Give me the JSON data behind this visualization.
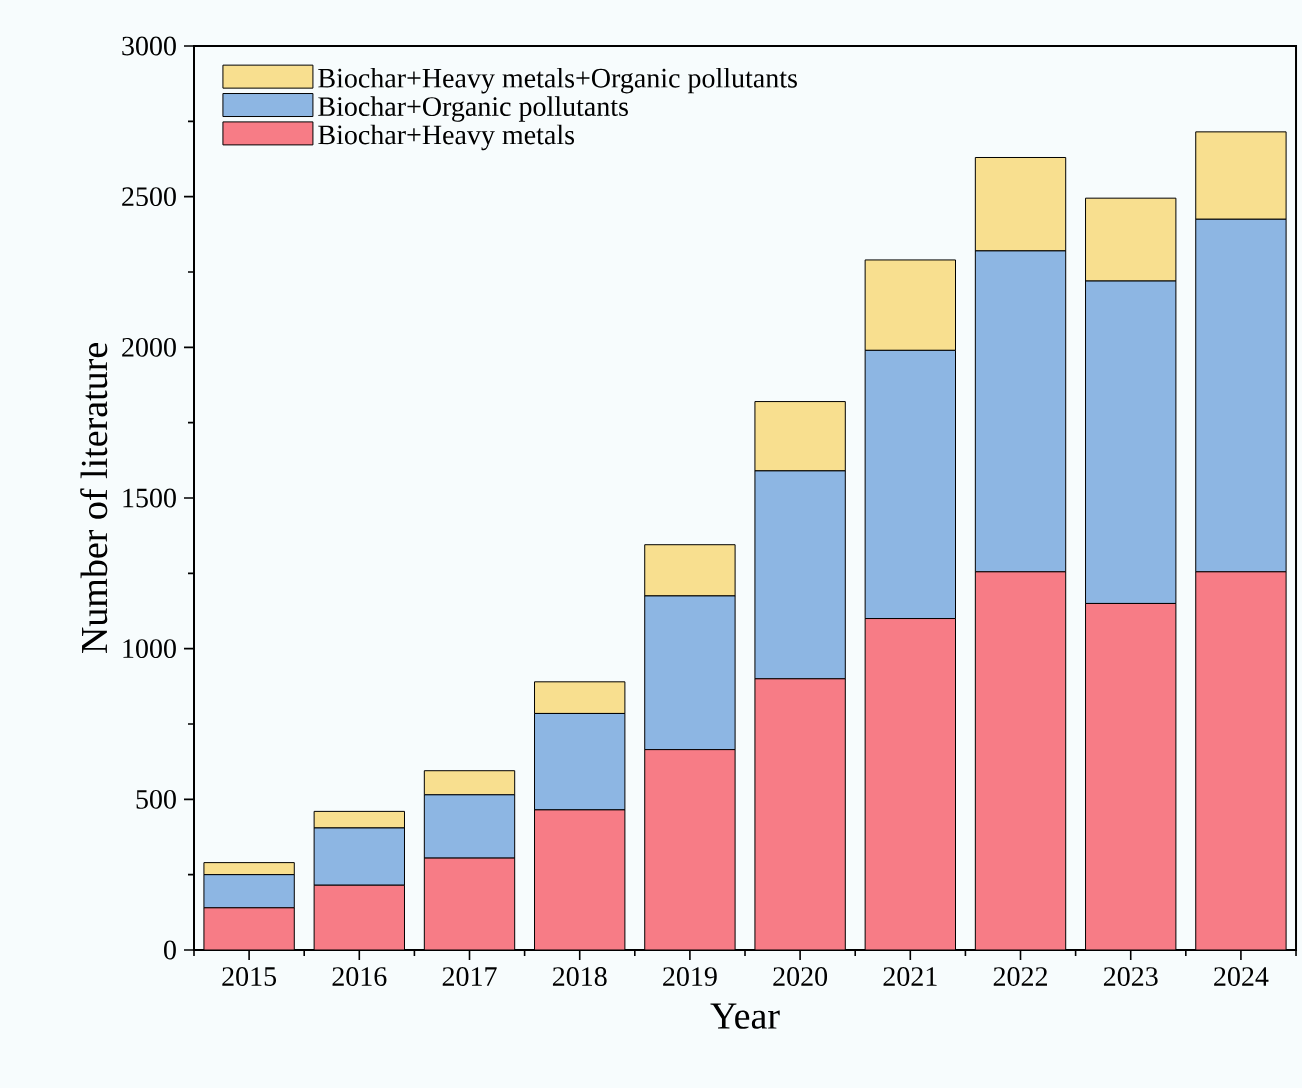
{
  "chart_data": {
    "type": "bar",
    "stacked": true,
    "xlabel": "Year",
    "ylabel": "Number of literature",
    "categories": [
      "2015",
      "2016",
      "2017",
      "2018",
      "2019",
      "2020",
      "2021",
      "2022",
      "2023",
      "2024"
    ],
    "series": [
      {
        "name": "Biochar+Heavy metals",
        "color": "#f77c86",
        "values": [
          140,
          215,
          305,
          465,
          665,
          900,
          1100,
          1255,
          1150,
          1255
        ]
      },
      {
        "name": "Biochar+Organic pollutants",
        "color": "#8db6e3",
        "values": [
          110,
          190,
          210,
          320,
          510,
          690,
          890,
          1065,
          1070,
          1170
        ]
      },
      {
        "name": "Biochar+Heavy metals+Organic pollutants",
        "color": "#f8df8f",
        "values": [
          40,
          55,
          80,
          105,
          170,
          230,
          300,
          310,
          275,
          290
        ]
      }
    ],
    "ylim": [
      0,
      3000
    ],
    "yticks": [
      0,
      500,
      1000,
      1500,
      2000,
      2500,
      3000
    ],
    "grid": false,
    "legend": "top left"
  }
}
